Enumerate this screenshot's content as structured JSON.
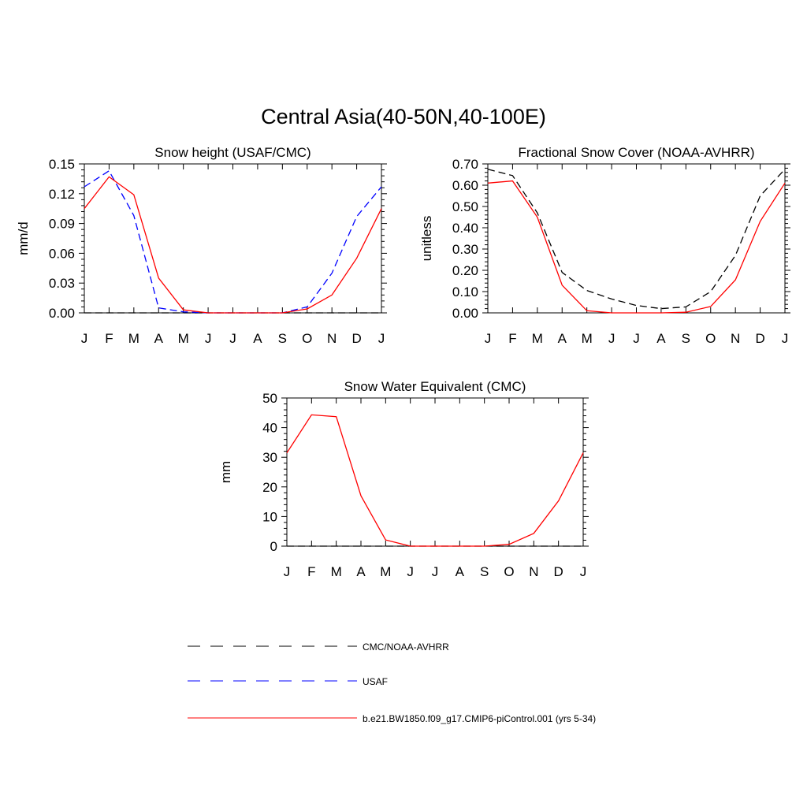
{
  "figure": {
    "title": "Central Asia(40-50N,40-100E)"
  },
  "chart_data": [
    {
      "type": "line",
      "title": "Snow height (USAF/CMC)",
      "xlabel": "",
      "ylabel": "mm/d",
      "ylim": [
        0,
        0.15
      ],
      "yticks": [
        "0.00",
        "0.03",
        "0.06",
        "0.09",
        "0.12",
        "0.15"
      ],
      "categories": [
        "J",
        "F",
        "M",
        "A",
        "M",
        "J",
        "J",
        "A",
        "S",
        "O",
        "N",
        "D",
        "J"
      ],
      "series": [
        {
          "name": "CMC/NOAA-AVHRR",
          "color": "#000000",
          "dash": "dashed",
          "values": [
            0,
            0,
            0,
            0,
            0,
            0,
            0,
            0,
            0,
            0,
            0,
            0,
            0
          ]
        },
        {
          "name": "USAF",
          "color": "#0000ff",
          "dash": "dashed",
          "values": [
            0.127,
            0.143,
            0.098,
            0.005,
            0.001,
            0,
            0,
            0,
            0,
            0.006,
            0.04,
            0.097,
            0.127
          ]
        },
        {
          "name": "b.e21.BW1850.f09_g17.CMIP6-piControl.001 (yrs 5-34)",
          "color": "#ff0000",
          "dash": "solid",
          "values": [
            0.105,
            0.137,
            0.119,
            0.035,
            0.003,
            0,
            0,
            0,
            0,
            0.004,
            0.018,
            0.055,
            0.105
          ]
        }
      ]
    },
    {
      "type": "line",
      "title": "Fractional Snow Cover (NOAA-AVHRR)",
      "xlabel": "",
      "ylabel": "unitless",
      "ylim": [
        0,
        0.7
      ],
      "yticks": [
        "0.00",
        "0.10",
        "0.20",
        "0.30",
        "0.40",
        "0.50",
        "0.60",
        "0.70"
      ],
      "categories": [
        "J",
        "F",
        "M",
        "A",
        "M",
        "J",
        "J",
        "A",
        "S",
        "O",
        "N",
        "D",
        "J"
      ],
      "series": [
        {
          "name": "CMC/NOAA-AVHRR",
          "color": "#000000",
          "dash": "dashed",
          "values": [
            0.675,
            0.645,
            0.47,
            0.19,
            0.105,
            0.065,
            0.035,
            0.02,
            0.028,
            0.1,
            0.27,
            0.55,
            0.675
          ]
        },
        {
          "name": "b.e21.BW1850.f09_g17.CMIP6-piControl.001 (yrs 5-34)",
          "color": "#ff0000",
          "dash": "solid",
          "values": [
            0.61,
            0.62,
            0.45,
            0.13,
            0.01,
            0,
            0,
            0,
            0.003,
            0.03,
            0.155,
            0.43,
            0.61
          ]
        }
      ]
    },
    {
      "type": "line",
      "title": "Snow Water Equivalent (CMC)",
      "xlabel": "",
      "ylabel": "mm",
      "ylim": [
        0,
        50
      ],
      "yticks": [
        "0",
        "10",
        "20",
        "30",
        "40",
        "50"
      ],
      "categories": [
        "J",
        "F",
        "M",
        "A",
        "M",
        "J",
        "J",
        "A",
        "S",
        "O",
        "N",
        "D",
        "J"
      ],
      "series": [
        {
          "name": "CMC/NOAA-AVHRR",
          "color": "#000000",
          "dash": "dashed",
          "values": [
            0,
            0,
            0,
            0,
            0,
            0,
            0,
            0,
            0,
            0,
            0,
            0,
            0
          ]
        },
        {
          "name": "b.e21.BW1850.f09_g17.CMIP6-piControl.001 (yrs 5-34)",
          "color": "#ff0000",
          "dash": "solid",
          "values": [
            31.5,
            44.3,
            43.7,
            17,
            2.1,
            0,
            0,
            0,
            0,
            0.6,
            4.3,
            15.3,
            31.5
          ]
        }
      ]
    }
  ],
  "legend": {
    "entries": [
      {
        "label": "CMC/NOAA-AVHRR",
        "color": "#000000",
        "dash": "dashed"
      },
      {
        "label": "USAF",
        "color": "#0000ff",
        "dash": "dashed"
      },
      {
        "label": "b.e21.BW1850.f09_g17.CMIP6-piControl.001 (yrs 5-34)",
        "color": "#ff0000",
        "dash": "solid"
      }
    ]
  }
}
